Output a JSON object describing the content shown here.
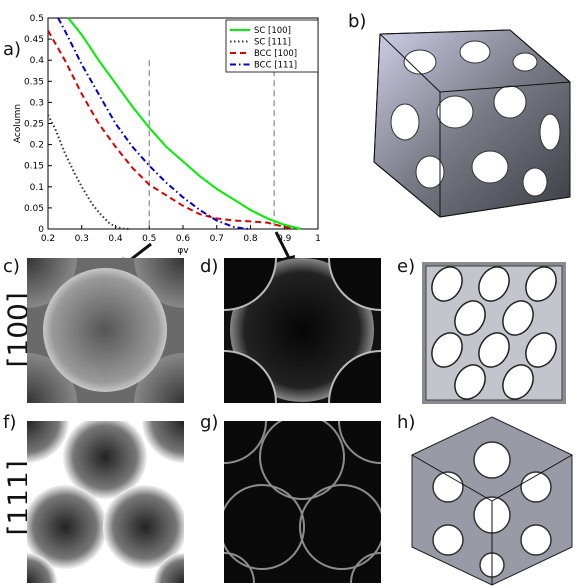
{
  "panels": {
    "a": "a)",
    "b": "b)",
    "c": "c)",
    "d": "d)",
    "e": "e)",
    "f": "f)",
    "g": "g)",
    "h": "h)"
  },
  "row_labels": {
    "top": "[100]",
    "bottom": "[111]"
  },
  "chart_data": {
    "type": "line",
    "xlabel": "φv",
    "ylabel": "Acolumn",
    "xlim": [
      0.2,
      1.0
    ],
    "ylim": [
      0,
      0.5
    ],
    "xticks": [
      "0.2",
      "0.3",
      "0.4",
      "0.5",
      "0.6",
      "0.7",
      "0.8",
      "0.9",
      "1"
    ],
    "yticks": [
      "0",
      "0.05",
      "0.1",
      "0.15",
      "0.2",
      "0.25",
      "0.3",
      "0.35",
      "0.4",
      "0.45",
      "0.5"
    ],
    "legend_position": "top-right",
    "vlines": [
      0.5,
      0.87
    ],
    "series": [
      {
        "name": "SC [100]",
        "color": "#00ee00",
        "style": "solid",
        "x": [
          0.26,
          0.3,
          0.35,
          0.4,
          0.45,
          0.5,
          0.55,
          0.6,
          0.65,
          0.7,
          0.75,
          0.8,
          0.85,
          0.9,
          0.95
        ],
        "y": [
          0.5,
          0.46,
          0.4,
          0.345,
          0.29,
          0.24,
          0.195,
          0.16,
          0.125,
          0.095,
          0.07,
          0.045,
          0.025,
          0.01,
          0.0
        ]
      },
      {
        "name": "SC [111]",
        "color": "#333333",
        "style": "dotted",
        "x": [
          0.2,
          0.22,
          0.25,
          0.28,
          0.3,
          0.33,
          0.35,
          0.38,
          0.4,
          0.42,
          0.44
        ],
        "y": [
          0.27,
          0.24,
          0.18,
          0.13,
          0.1,
          0.06,
          0.04,
          0.015,
          0.005,
          0.001,
          0.0
        ]
      },
      {
        "name": "BCC [100]",
        "color": "#dd0000",
        "style": "dashed",
        "x": [
          0.2,
          0.25,
          0.3,
          0.35,
          0.4,
          0.45,
          0.5,
          0.55,
          0.6,
          0.65,
          0.7,
          0.75,
          0.8,
          0.85,
          0.9,
          0.93
        ],
        "y": [
          0.47,
          0.4,
          0.32,
          0.25,
          0.195,
          0.145,
          0.105,
          0.08,
          0.055,
          0.035,
          0.025,
          0.02,
          0.018,
          0.015,
          0.005,
          0.0
        ]
      },
      {
        "name": "BCC [111]",
        "color": "#0000cc",
        "style": "dashdot",
        "x": [
          0.23,
          0.25,
          0.3,
          0.35,
          0.4,
          0.45,
          0.5,
          0.55,
          0.6,
          0.65,
          0.7,
          0.75,
          0.78,
          0.8
        ],
        "y": [
          0.5,
          0.47,
          0.39,
          0.32,
          0.25,
          0.195,
          0.15,
          0.11,
          0.075,
          0.045,
          0.02,
          0.005,
          0.001,
          0.0
        ]
      }
    ]
  },
  "tick_mark_labels": {
    "x_end": "1"
  }
}
